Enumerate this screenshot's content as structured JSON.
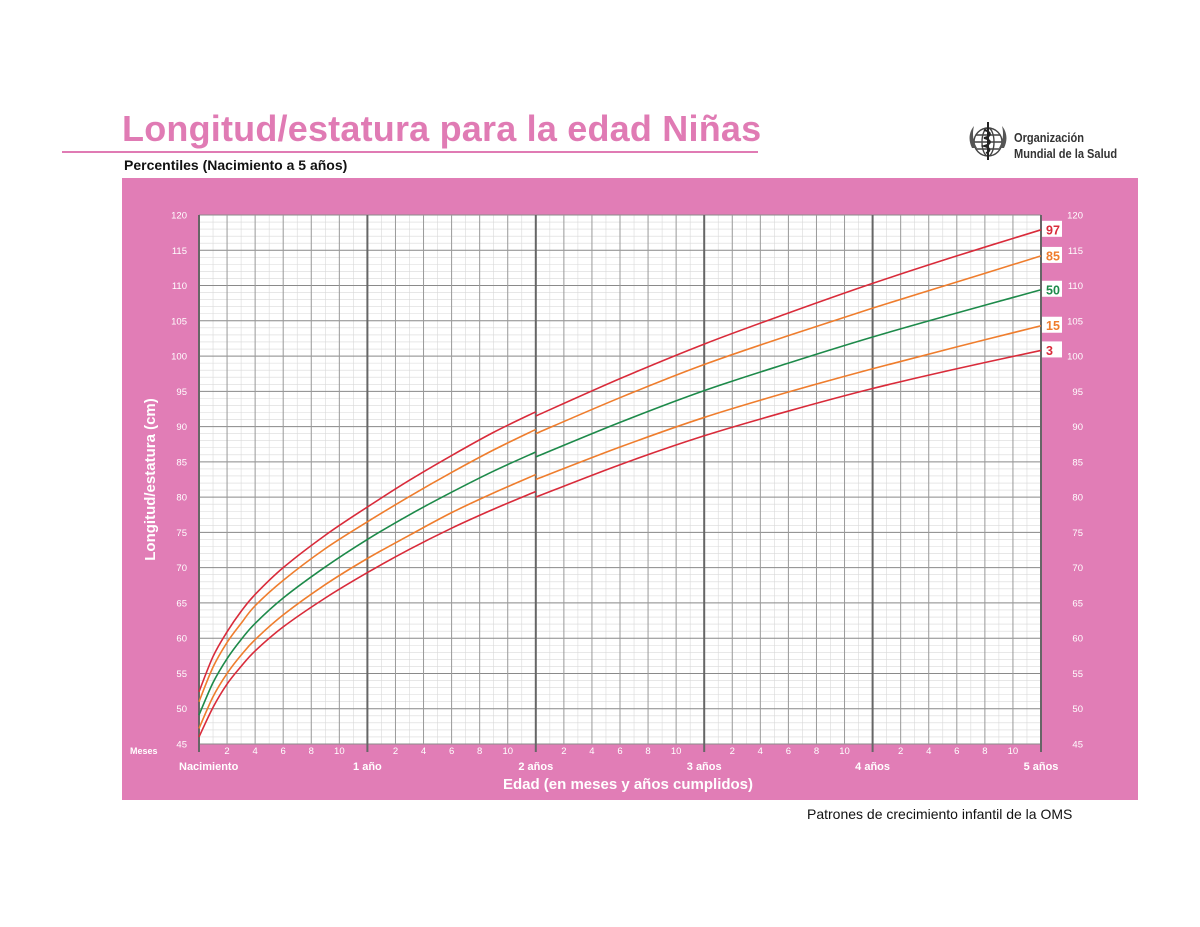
{
  "header": {
    "title": "Longitud/estatura para la edad Niñas",
    "subtitle": "Percentiles (Nacimiento a 5 años)",
    "org_line1": "Organización",
    "org_line2": "Mundial de la Salud",
    "org_logo_icon": "who-emblem-icon"
  },
  "footer": {
    "text": "Patrones de crecimiento infantil de la OMS"
  },
  "colors": {
    "panel": "#e17db6",
    "title": "#e07bb4",
    "p3_p97": "#d92b3a",
    "p15_p85": "#ef7d2d",
    "p50": "#1d8a4a",
    "axis_text": "#ffffff"
  },
  "chart_data": {
    "type": "line",
    "title": "Longitud/estatura para la edad Niñas",
    "subtitle": "Percentiles (Nacimiento a 5 años)",
    "ylabel": "Longitud/estatura (cm)",
    "xlabel": "Edad (en meses y años cumplidos)",
    "x_unit_label": "Meses",
    "ylim": [
      45,
      120
    ],
    "y_ticks": [
      45,
      50,
      55,
      60,
      65,
      70,
      75,
      80,
      85,
      90,
      95,
      100,
      105,
      110,
      115,
      120
    ],
    "xlim": [
      0,
      60
    ],
    "month_tick_labels": [
      "2",
      "4",
      "6",
      "8",
      "10"
    ],
    "year_labels": [
      "Nacimiento",
      "1 año",
      "2 años",
      "3 años",
      "4 años",
      "5 años"
    ],
    "grid": true,
    "x_months": [
      0,
      1,
      2,
      3,
      4,
      6,
      9,
      12,
      15,
      18,
      21,
      24,
      30,
      36,
      42,
      48,
      54,
      60
    ],
    "series": [
      {
        "name": "97",
        "color_key": "p3_p97",
        "values": [
          52.4,
          57.4,
          60.9,
          63.8,
          66.2,
          70.0,
          74.6,
          78.6,
          82.4,
          85.9,
          89.2,
          92.1,
          97.3,
          102.2,
          106.6,
          110.8,
          114.6,
          118.3
        ],
        "values_after_24": [
          91.5,
          96.8,
          101.7,
          106.1,
          110.3,
          114.2,
          117.9
        ]
      },
      {
        "name": "85",
        "color_key": "p15_p85",
        "values": [
          51.0,
          55.9,
          59.4,
          62.1,
          64.6,
          68.2,
          72.7,
          76.5,
          80.1,
          83.5,
          86.7,
          89.6,
          94.7,
          99.3,
          103.4,
          107.3,
          111.0,
          114.5
        ],
        "values_after_24": [
          89.0,
          94.1,
          98.8,
          102.9,
          106.8,
          110.5,
          114.2
        ]
      },
      {
        "name": "50",
        "color_key": "p50",
        "values": [
          49.1,
          53.7,
          57.1,
          59.8,
          62.1,
          65.7,
          70.1,
          74.0,
          77.5,
          80.7,
          83.7,
          86.4,
          91.3,
          95.7,
          99.6,
          102.9,
          106.3,
          109.4
        ],
        "values_after_24": [
          85.7,
          90.6,
          95.1,
          99.0,
          102.7,
          106.1,
          109.4
        ]
      },
      {
        "name": "15",
        "color_key": "p15_p85",
        "values": [
          47.2,
          51.7,
          55.0,
          57.6,
          59.8,
          63.3,
          67.6,
          71.3,
          74.6,
          77.8,
          80.6,
          83.2,
          87.9,
          92.0,
          95.6,
          98.8,
          101.8,
          104.6
        ],
        "values_after_24": [
          82.5,
          87.1,
          91.3,
          94.9,
          98.2,
          101.3,
          104.3
        ]
      },
      {
        "name": "3",
        "color_key": "p3_p97",
        "values": [
          46.0,
          50.2,
          53.5,
          56.0,
          58.2,
          61.6,
          65.7,
          69.3,
          72.6,
          75.6,
          78.3,
          80.8,
          85.3,
          89.2,
          92.7,
          95.8,
          98.4,
          101.0
        ],
        "values_after_24": [
          80.0,
          84.6,
          88.7,
          92.2,
          95.4,
          98.2,
          100.8
        ]
      }
    ],
    "x_after_24": [
      24,
      30,
      36,
      42,
      48,
      54,
      60
    ]
  }
}
